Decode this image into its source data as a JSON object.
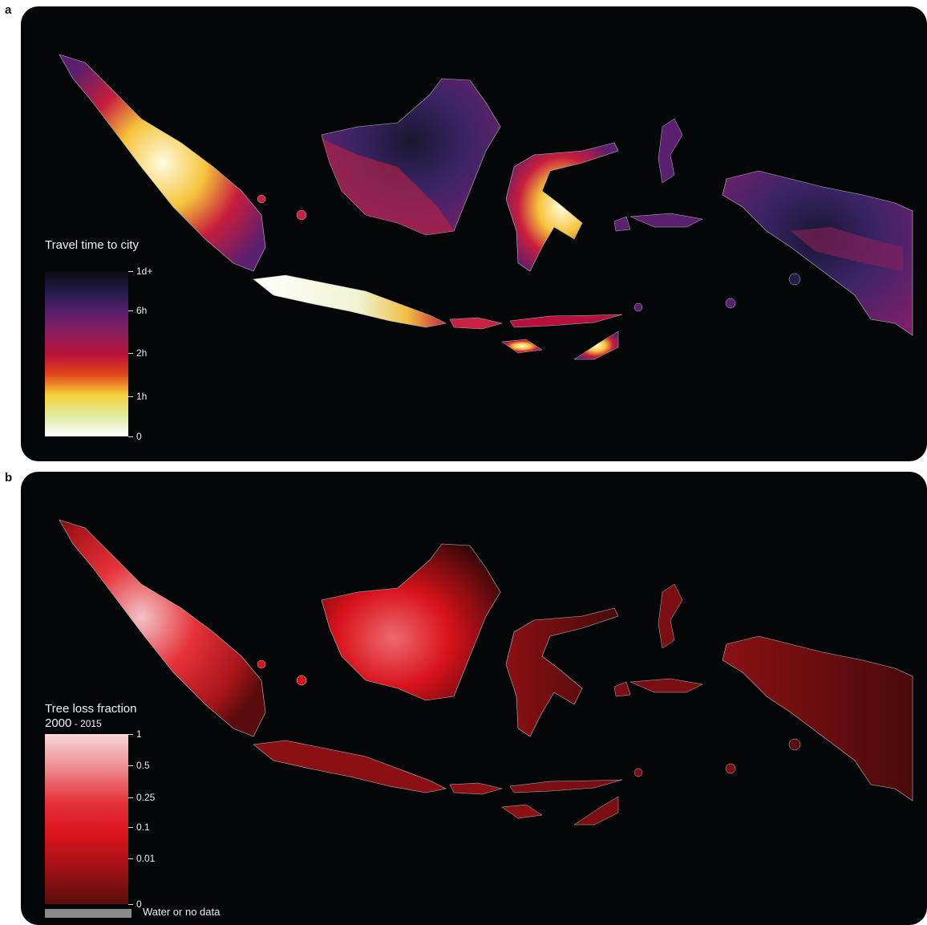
{
  "panel_a": {
    "letter": "a",
    "legend": {
      "title": "Travel time to city",
      "ticks": [
        "1d+",
        "6h",
        "2h",
        "1h",
        "0"
      ],
      "colors": [
        "#0a0a12",
        "#241d4a",
        "#5a1f6e",
        "#8c1f5a",
        "#b8103c",
        "#e2461a",
        "#f5d23a",
        "#dfeaa0",
        "#ffffff"
      ]
    }
  },
  "panel_b": {
    "letter": "b",
    "legend": {
      "title_line1": "Tree loss fraction",
      "title_year_main": "2000",
      "title_year_sub": " - 2015",
      "ticks": [
        "1",
        "0.5",
        "0.25",
        "0.1",
        "0.01",
        "0"
      ],
      "colors": [
        "#f7d7da",
        "#ee8a8e",
        "#e6323a",
        "#d9121b",
        "#9c1216",
        "#5a0c0c"
      ],
      "nodata_label": "Water or no data",
      "nodata_color": "#8a8a8a"
    }
  }
}
